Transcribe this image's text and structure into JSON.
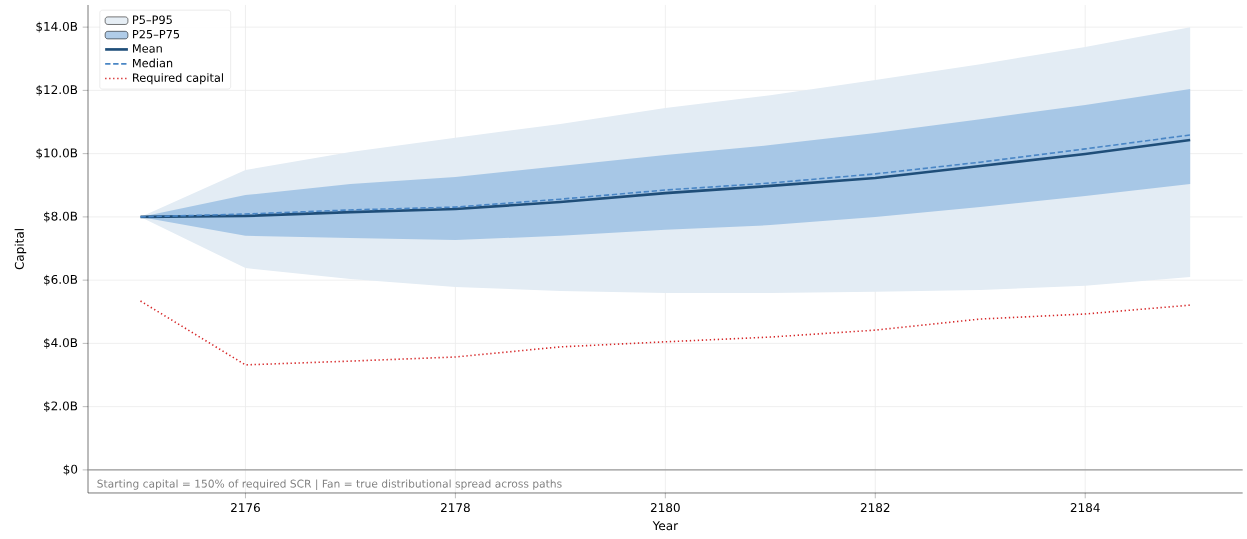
{
  "chart_data": {
    "type": "line",
    "xlabel": "Year",
    "ylabel": "Capital",
    "x": [
      2175,
      2176,
      2177,
      2178,
      2179,
      2180,
      2181,
      2182,
      2183,
      2184,
      2185
    ],
    "series": [
      {
        "name": "P5–P95",
        "type": "area",
        "color": "#e3ecf4",
        "values": [
          null,
          null,
          null,
          null,
          null,
          null,
          null,
          null,
          null,
          null,
          null
        ],
        "lower": [
          8.0,
          6.38,
          6.04,
          5.78,
          5.66,
          5.59,
          5.59,
          5.63,
          5.69,
          5.82,
          6.1
        ],
        "upper": [
          8.0,
          9.48,
          10.05,
          10.5,
          10.94,
          11.44,
          11.85,
          12.33,
          12.83,
          13.37,
          14.0
        ]
      },
      {
        "name": "P25–P75",
        "type": "area",
        "color": "#a7c7e6",
        "values": [
          null,
          null,
          null,
          null,
          null,
          null,
          null,
          null,
          null,
          null,
          null
        ],
        "lower": [
          8.0,
          7.4,
          7.33,
          7.27,
          7.4,
          7.59,
          7.74,
          8.0,
          8.31,
          8.66,
          9.04
        ],
        "upper": [
          8.0,
          8.69,
          9.04,
          9.26,
          9.61,
          9.96,
          10.27,
          10.65,
          11.09,
          11.54,
          12.04
        ]
      },
      {
        "name": "Mean",
        "color": "#1f4e79",
        "line_style": "solid",
        "values": [
          8.0,
          8.03,
          8.15,
          8.25,
          8.47,
          8.75,
          8.98,
          9.23,
          9.61,
          9.99,
          10.43
        ]
      },
      {
        "name": "Median",
        "color": "#4a86c5",
        "line_style": "dashed",
        "values": [
          8.0,
          8.09,
          8.22,
          8.31,
          8.56,
          8.85,
          9.07,
          9.36,
          9.73,
          10.15,
          10.59
        ]
      },
      {
        "name": "Required capital",
        "color": "#d62728",
        "line_style": "dotted",
        "values": [
          5.34,
          3.32,
          3.44,
          3.57,
          3.89,
          4.05,
          4.2,
          4.42,
          4.77,
          4.93,
          5.21
        ]
      }
    ],
    "xlim": [
      2174.5,
      2185.5
    ],
    "xticks": [
      2176,
      2178,
      2180,
      2182,
      2184
    ],
    "ylim": [
      -0.73,
      14.7
    ],
    "yticks": [
      {
        "value": 0,
        "label": "$0"
      },
      {
        "value": 2,
        "label": "$2.0B"
      },
      {
        "value": 4,
        "label": "$4.0B"
      },
      {
        "value": 6,
        "label": "$6.0B"
      },
      {
        "value": 8,
        "label": "$8.0B"
      },
      {
        "value": 10,
        "label": "$10.0B"
      },
      {
        "value": 12,
        "label": "$12.0B"
      },
      {
        "value": 14,
        "label": "$14.0B"
      }
    ],
    "ref_lines": [
      {
        "axis": "y",
        "value": 0,
        "color": "#999999"
      }
    ],
    "annotations": [
      "Starting capital = 150% of required SCR | Fan = true distributional spread across paths"
    ],
    "grid": true,
    "legend": "top left"
  }
}
